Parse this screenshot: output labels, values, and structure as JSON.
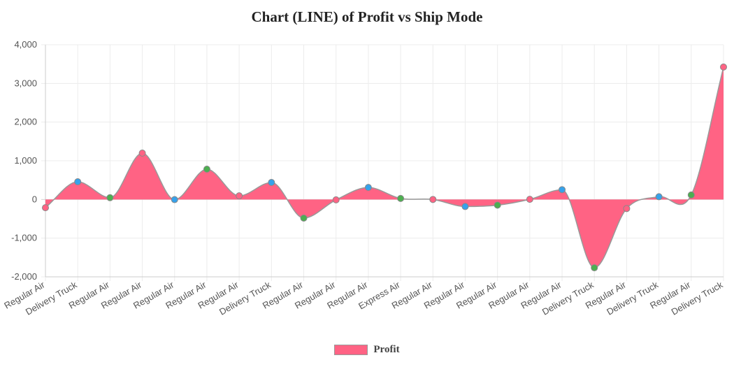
{
  "chart_data": {
    "type": "line",
    "title": "Chart (LINE) of Profit vs Ship Mode",
    "xlabel": "",
    "ylabel": "",
    "categories": [
      "Regular Air",
      "Delivery Truck",
      "Regular Air",
      "Regular Air",
      "Regular Air",
      "Regular Air",
      "Regular Air",
      "Delivery Truck",
      "Regular Air",
      "Regular Air",
      "Regular Air",
      "Express Air",
      "Regular Air",
      "Regular Air",
      "Regular Air",
      "Regular Air",
      "Regular Air",
      "Delivery Truck",
      "Regular Air",
      "Delivery Truck",
      "Regular Air",
      "Delivery Truck"
    ],
    "series": [
      {
        "name": "Profit",
        "values": [
          -213,
          457,
          46,
          1199,
          -4,
          783,
          93,
          440,
          -481,
          -10,
          311,
          26,
          0,
          -182,
          -147,
          4,
          253,
          -1766,
          -235,
          71,
          117,
          3424
        ],
        "fill_color": "#ff6384",
        "line_color": "#999999",
        "point_colors": [
          "#ff6384",
          "#36a2eb",
          "#4caf50"
        ]
      }
    ],
    "ylim": [
      -2000,
      4000
    ],
    "yticks": [
      -2000,
      -1000,
      0,
      1000,
      2000,
      3000,
      4000
    ],
    "ytick_labels": [
      "-2,000",
      "-1,000",
      "0",
      "1,000",
      "2,000",
      "3,000",
      "4,000"
    ],
    "grid": true,
    "legend_position": "bottom"
  }
}
